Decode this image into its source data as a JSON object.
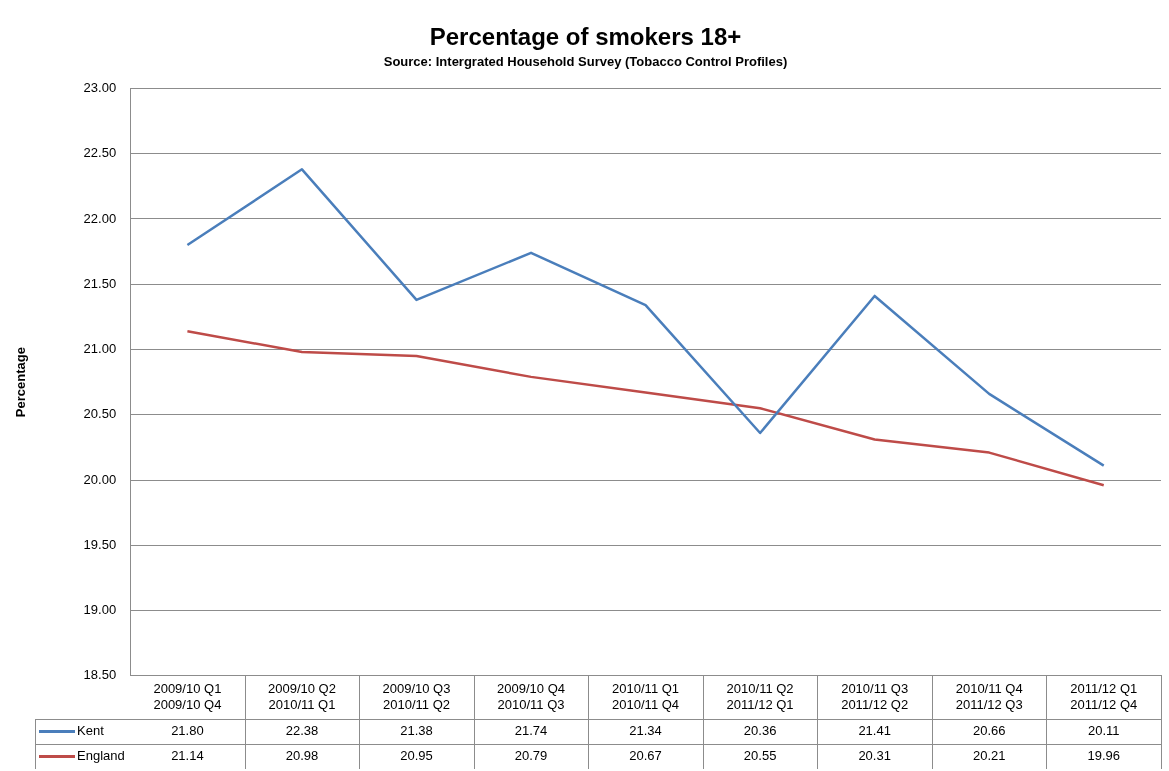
{
  "chart_data": {
    "type": "line",
    "title": "Percentage of smokers 18+",
    "subtitle": "Source: Intergrated Household Survey (Tobacco Control Profiles)",
    "ylabel": "Percentage",
    "categories": [
      "2009/10 Q1\n2009/10 Q4",
      "2009/10 Q2\n2010/11 Q1",
      "2009/10 Q3\n2010/11 Q2",
      "2009/10 Q4\n2010/11 Q3",
      "2010/11 Q1\n2010/11 Q4",
      "2010/11 Q2\n2011/12 Q1",
      "2010/11 Q3\n2011/12 Q2",
      "2010/11 Q4\n2011/12 Q3",
      "2011/12 Q1\n2011/12 Q4"
    ],
    "series": [
      {
        "name": "Kent",
        "color": "#4a7ebb",
        "values": [
          21.8,
          22.38,
          21.38,
          21.74,
          21.34,
          20.36,
          21.41,
          20.66,
          20.11
        ],
        "value_labels": [
          "21.80",
          "22.38",
          "21.38",
          "21.74",
          "21.34",
          "20.36",
          "21.41",
          "20.66",
          "20.11"
        ]
      },
      {
        "name": "England",
        "color": "#be4b48",
        "values": [
          21.14,
          20.98,
          20.95,
          20.79,
          20.67,
          20.55,
          20.31,
          20.21,
          19.96
        ],
        "value_labels": [
          "21.14",
          "20.98",
          "20.95",
          "20.79",
          "20.67",
          "20.55",
          "20.31",
          "20.21",
          "19.96"
        ]
      }
    ],
    "ylim": [
      18.5,
      23
    ],
    "yticks": [
      {
        "value": 18.5,
        "label": "18.50"
      },
      {
        "value": 19,
        "label": "19.00"
      },
      {
        "value": 19.5,
        "label": "19.50"
      },
      {
        "value": 20,
        "label": "20.00"
      },
      {
        "value": 20.5,
        "label": "20.50"
      },
      {
        "value": 21,
        "label": "21.00"
      },
      {
        "value": 21.5,
        "label": "21.50"
      },
      {
        "value": 22,
        "label": "22.00"
      },
      {
        "value": 22.5,
        "label": "22.50"
      },
      {
        "value": 23,
        "label": "23.00"
      }
    ],
    "grid": "y",
    "legend": "bottom left",
    "marker": "none",
    "line_style": "solid"
  }
}
